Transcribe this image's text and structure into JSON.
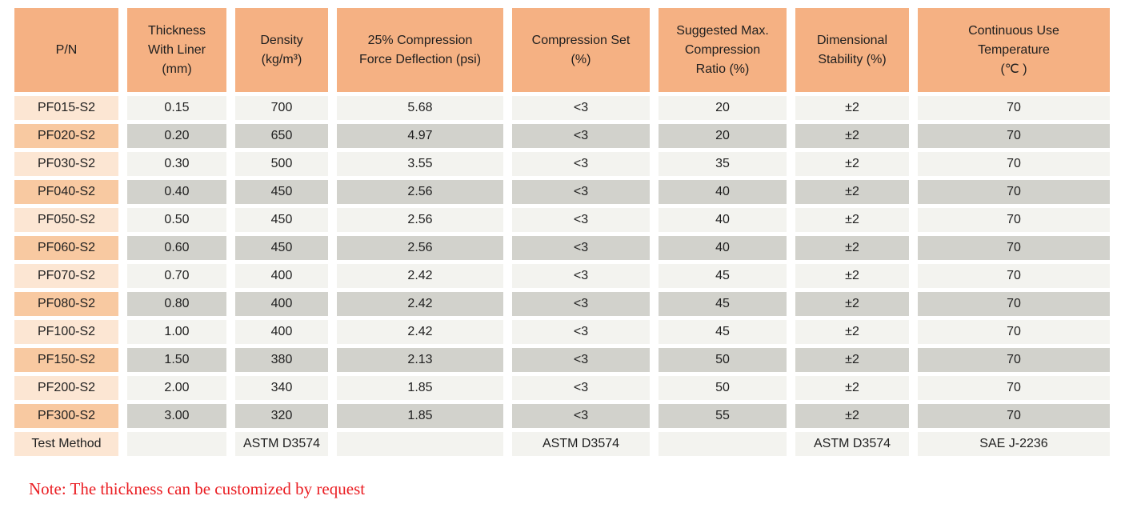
{
  "table": {
    "columns": [
      {
        "label": "P/N"
      },
      {
        "label": "Thickness\nWith Liner\n(mm)"
      },
      {
        "label": "Density\n(kg/m³)"
      },
      {
        "label": "25% Compression\nForce Deflection (psi)"
      },
      {
        "label": "Compression Set\n(%)"
      },
      {
        "label": "Suggested Max.\nCompression\nRatio (%)"
      },
      {
        "label": "Dimensional\nStability (%)"
      },
      {
        "label": "Continuous Use\nTemperature\n(℃ )"
      }
    ],
    "rows": [
      [
        "PF015-S2",
        "0.15",
        "700",
        "5.68",
        "<3",
        "20",
        "±2",
        "70"
      ],
      [
        "PF020-S2",
        "0.20",
        "650",
        "4.97",
        "<3",
        "20",
        "±2",
        "70"
      ],
      [
        "PF030-S2",
        "0.30",
        "500",
        "3.55",
        "<3",
        "35",
        "±2",
        "70"
      ],
      [
        "PF040-S2",
        "0.40",
        "450",
        "2.56",
        "<3",
        "40",
        "±2",
        "70"
      ],
      [
        "PF050-S2",
        "0.50",
        "450",
        "2.56",
        "<3",
        "40",
        "±2",
        "70"
      ],
      [
        "PF060-S2",
        "0.60",
        "450",
        "2.56",
        "<3",
        "40",
        "±2",
        "70"
      ],
      [
        "PF070-S2",
        "0.70",
        "400",
        "2.42",
        "<3",
        "45",
        "±2",
        "70"
      ],
      [
        "PF080-S2",
        "0.80",
        "400",
        "2.42",
        "<3",
        "45",
        "±2",
        "70"
      ],
      [
        "PF100-S2",
        "1.00",
        "400",
        "2.42",
        "<3",
        "45",
        "±2",
        "70"
      ],
      [
        "PF150-S2",
        "1.50",
        "380",
        "2.13",
        "<3",
        "50",
        "±2",
        "70"
      ],
      [
        "PF200-S2",
        "2.00",
        "340",
        "1.85",
        "<3",
        "50",
        "±2",
        "70"
      ],
      [
        "PF300-S2",
        "3.00",
        "320",
        "1.85",
        "<3",
        "55",
        "±2",
        "70"
      ],
      [
        "Test Method",
        "",
        "ASTM D3574",
        "",
        "ASTM D3574",
        "",
        "ASTM D3574",
        "SAE J-2236"
      ]
    ]
  },
  "note": "Note: The thickness can be customized by request",
  "colors": {
    "header_bg": "#F5B183",
    "pn_light": "#FCE6D3",
    "pn_dark": "#F8C9A1",
    "cell_light": "#F3F3EF",
    "cell_dark": "#D2D2CC",
    "note_red": "#EA1D22"
  }
}
